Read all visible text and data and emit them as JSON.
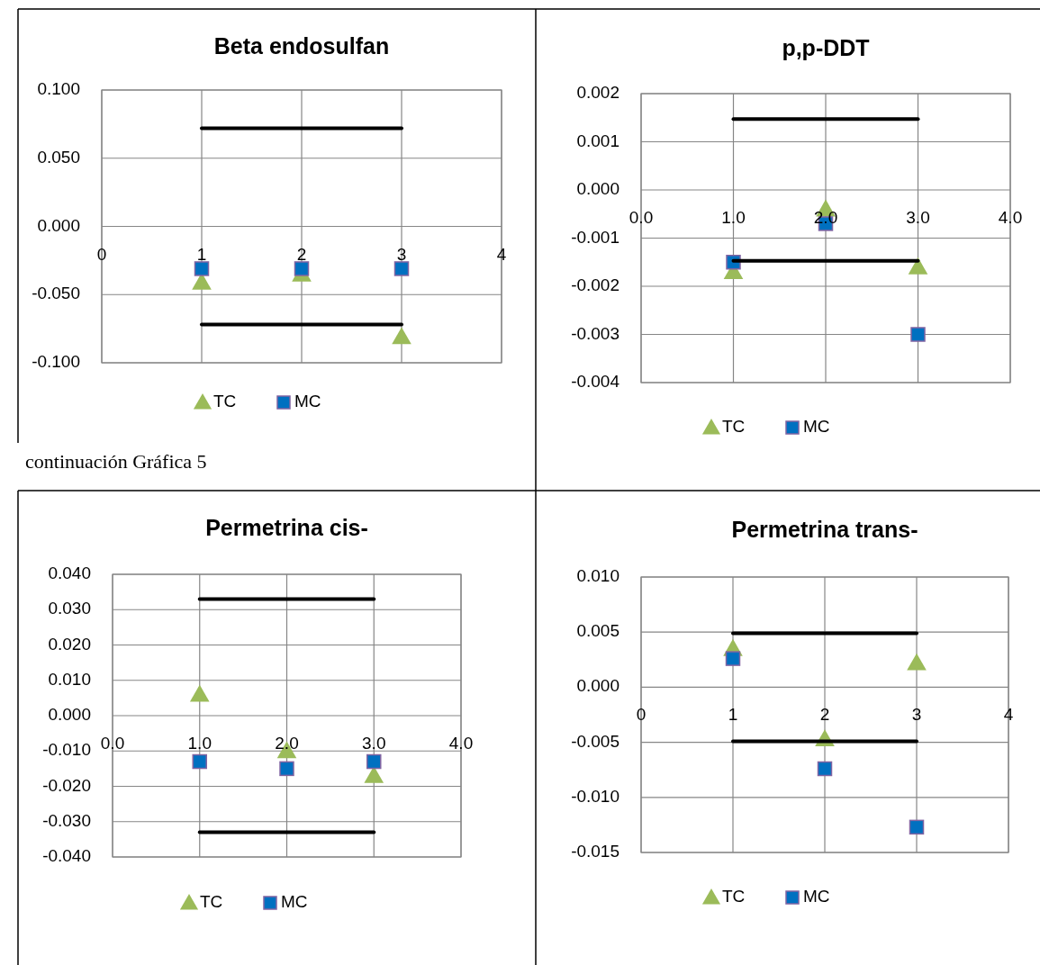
{
  "chart_data": [
    {
      "type": "scatter",
      "title": "Beta endosulfan",
      "xlim": [
        0,
        4
      ],
      "xticks": [
        0,
        1,
        2,
        3,
        4
      ],
      "ylim": [
        -0.1,
        0.1
      ],
      "yticks": [
        {
          "value": -0.1,
          "label": "-0.100"
        },
        {
          "value": -0.05,
          "label": "-0.050"
        },
        {
          "value": 0,
          "label": "0.000"
        },
        {
          "value": 0.05,
          "label": "0.050"
        },
        {
          "value": 0.1,
          "label": "0.100"
        }
      ],
      "grid": true,
      "legend": "bottom",
      "series": [
        {
          "name": "TC",
          "color": "#9bbb59",
          "marker": "triangle",
          "x": [
            1,
            2,
            3
          ],
          "values": [
            -0.041,
            -0.035,
            -0.081
          ]
        },
        {
          "name": "MC",
          "color": "#0070c0",
          "marker": "square",
          "x": [
            1,
            2,
            3
          ],
          "values": [
            -0.031,
            -0.031,
            -0.031
          ]
        },
        {
          "type": "line",
          "color": "#000000",
          "marker": "none",
          "x": [
            1,
            3
          ],
          "values": [
            0.072,
            0.072
          ]
        },
        {
          "type": "line",
          "color": "#000000",
          "marker": "none",
          "x": [
            1,
            3
          ],
          "values": [
            -0.072,
            -0.072
          ]
        }
      ]
    },
    {
      "type": "scatter",
      "title": "p,p-DDT",
      "xlim": [
        0,
        4
      ],
      "xticks": [
        {
          "value": 0,
          "label": "0.0"
        },
        {
          "value": 1,
          "label": "1.0"
        },
        {
          "value": 2,
          "label": "2.0"
        },
        {
          "value": 3,
          "label": "3.0"
        },
        {
          "value": 4,
          "label": "4.0"
        }
      ],
      "ylim": [
        -0.004,
        0.002
      ],
      "yticks": [
        {
          "value": -0.004,
          "label": "-0.004"
        },
        {
          "value": -0.003,
          "label": "-0.003"
        },
        {
          "value": -0.002,
          "label": "-0.002"
        },
        {
          "value": -0.001,
          "label": "-0.001"
        },
        {
          "value": 0,
          "label": "0.000"
        },
        {
          "value": 0.001,
          "label": "0.001"
        },
        {
          "value": 0.002,
          "label": "0.002"
        }
      ],
      "grid": true,
      "legend": "bottom",
      "series": [
        {
          "name": "TC",
          "color": "#9bbb59",
          "marker": "triangle",
          "x": [
            1,
            2,
            3
          ],
          "values": [
            -0.0017,
            -0.0004,
            -0.0016
          ]
        },
        {
          "name": "MC",
          "color": "#0070c0",
          "marker": "square",
          "x": [
            1,
            2,
            3
          ],
          "values": [
            -0.0015,
            -0.0007,
            -0.003
          ]
        },
        {
          "type": "line",
          "color": "#000000",
          "marker": "none",
          "x": [
            1,
            3
          ],
          "values": [
            0.00147,
            0.00147
          ]
        },
        {
          "type": "line",
          "color": "#000000",
          "marker": "none",
          "x": [
            1,
            3
          ],
          "values": [
            -0.00147,
            -0.00147
          ]
        }
      ]
    },
    {
      "type": "scatter",
      "title": "Permetrina cis-",
      "annotations": [
        "continuación Gráfica 5"
      ],
      "xlim": [
        0,
        4
      ],
      "xticks": [
        {
          "value": 0,
          "label": "0.0"
        },
        {
          "value": 1,
          "label": "1.0"
        },
        {
          "value": 2,
          "label": "2.0"
        },
        {
          "value": 3,
          "label": "3.0"
        },
        {
          "value": 4,
          "label": "4.0"
        }
      ],
      "ylim": [
        -0.04,
        0.04
      ],
      "yticks": [
        {
          "value": -0.04,
          "label": "-0.040"
        },
        {
          "value": -0.03,
          "label": "-0.030"
        },
        {
          "value": -0.02,
          "label": "-0.020"
        },
        {
          "value": -0.01,
          "label": "-0.010"
        },
        {
          "value": 0,
          "label": "0.000"
        },
        {
          "value": 0.01,
          "label": "0.010"
        },
        {
          "value": 0.02,
          "label": "0.020"
        },
        {
          "value": 0.03,
          "label": "0.030"
        },
        {
          "value": 0.04,
          "label": "0.040"
        }
      ],
      "grid": true,
      "legend": "bottom",
      "series": [
        {
          "name": "TC",
          "color": "#9bbb59",
          "marker": "triangle",
          "x": [
            1,
            2,
            3
          ],
          "values": [
            0.006,
            -0.01,
            -0.017
          ]
        },
        {
          "name": "MC",
          "color": "#0070c0",
          "marker": "square",
          "x": [
            1,
            2,
            3
          ],
          "values": [
            -0.013,
            -0.015,
            -0.013
          ]
        },
        {
          "type": "line",
          "color": "#000000",
          "marker": "none",
          "x": [
            1,
            3
          ],
          "values": [
            0.033,
            0.033
          ]
        },
        {
          "type": "line",
          "color": "#000000",
          "marker": "none",
          "x": [
            1,
            3
          ],
          "values": [
            -0.033,
            -0.033
          ]
        }
      ]
    },
    {
      "type": "scatter",
      "title": "Permetrina trans-",
      "xlim": [
        0,
        4
      ],
      "xticks": [
        0,
        1,
        2,
        3,
        4
      ],
      "ylim": [
        -0.015,
        0.01
      ],
      "yticks": [
        {
          "value": -0.015,
          "label": "-0.015"
        },
        {
          "value": -0.01,
          "label": "-0.010"
        },
        {
          "value": -0.005,
          "label": "-0.005"
        },
        {
          "value": 0,
          "label": "0.000"
        },
        {
          "value": 0.005,
          "label": "0.005"
        },
        {
          "value": 0.01,
          "label": "0.010"
        }
      ],
      "grid": true,
      "legend": "bottom",
      "series": [
        {
          "name": "TC",
          "color": "#9bbb59",
          "marker": "triangle",
          "x": [
            1,
            2,
            3
          ],
          "values": [
            0.0035,
            -0.0047,
            0.0022
          ]
        },
        {
          "name": "MC",
          "color": "#0070c0",
          "marker": "square",
          "x": [
            1,
            2,
            3
          ],
          "values": [
            0.0026,
            -0.0074,
            -0.0127
          ]
        },
        {
          "type": "line",
          "color": "#000000",
          "marker": "none",
          "x": [
            1,
            3
          ],
          "values": [
            0.0049,
            0.0049
          ]
        },
        {
          "type": "line",
          "color": "#000000",
          "marker": "none",
          "x": [
            1,
            3
          ],
          "values": [
            -0.0049,
            -0.0049
          ]
        }
      ]
    }
  ]
}
